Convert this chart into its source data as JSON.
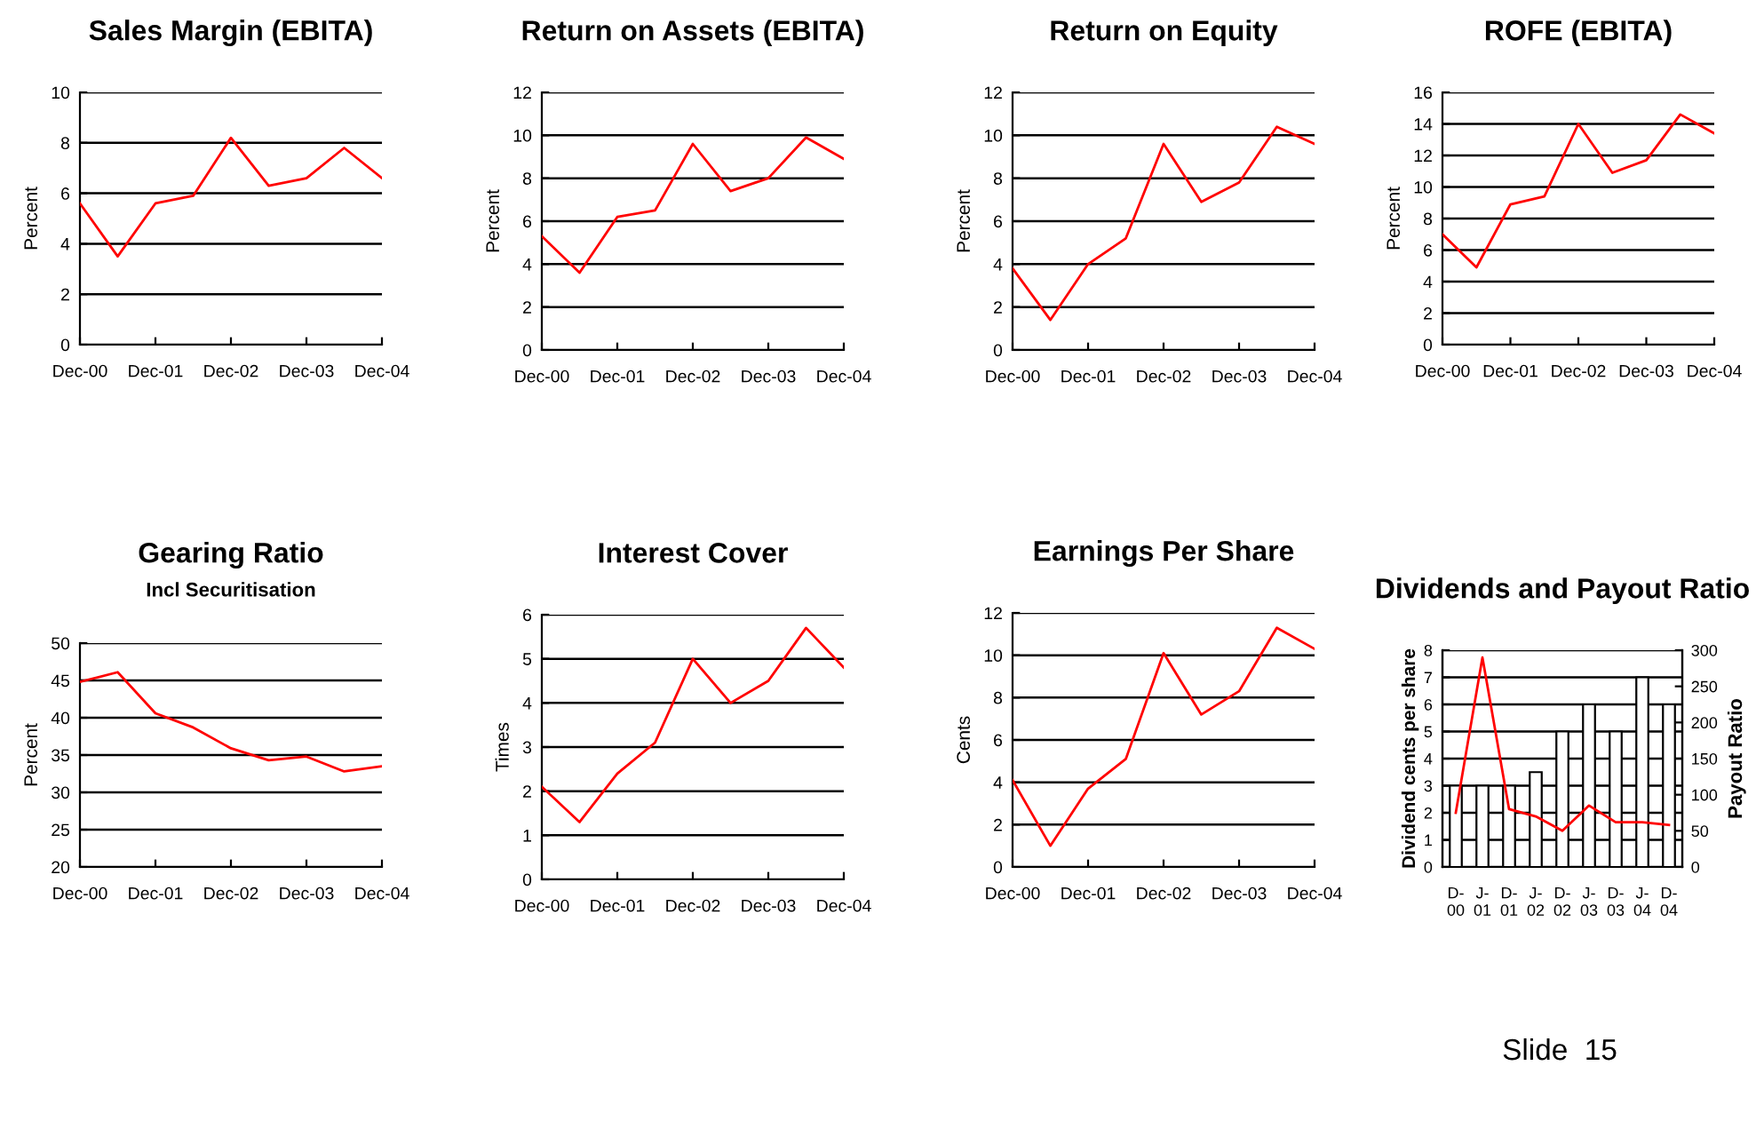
{
  "chart_data": [
    {
      "type": "line",
      "title": "Sales Margin (EBITA)",
      "ylabel": "Percent",
      "categories": [
        "Dec-00",
        null,
        "Dec-01",
        null,
        "Dec-02",
        null,
        "Dec-03",
        null,
        "Dec-04"
      ],
      "series": [
        {
          "color": "#ff0000",
          "values": [
            5.6,
            3.5,
            5.6,
            5.9,
            8.2,
            6.3,
            6.6,
            7.8,
            6.6
          ]
        }
      ],
      "ylim": [
        0,
        10
      ],
      "yticks": [
        0,
        2,
        4,
        6,
        8,
        10
      ],
      "grid": "y",
      "legend": false
    },
    {
      "type": "line",
      "title": "Return on Assets (EBITA)",
      "ylabel": "Percent",
      "categories": [
        "Dec-00",
        null,
        "Dec-01",
        null,
        "Dec-02",
        null,
        "Dec-03",
        null,
        "Dec-04"
      ],
      "series": [
        {
          "color": "#ff0000",
          "values": [
            5.3,
            3.6,
            6.2,
            6.5,
            9.6,
            7.4,
            8.0,
            9.9,
            8.9
          ]
        }
      ],
      "ylim": [
        0,
        12
      ],
      "yticks": [
        0,
        2,
        4,
        6,
        8,
        10,
        12
      ],
      "grid": "y",
      "legend": false
    },
    {
      "type": "line",
      "title": "Return on Equity",
      "ylabel": "Percent",
      "categories": [
        "Dec-00",
        null,
        "Dec-01",
        null,
        "Dec-02",
        null,
        "Dec-03",
        null,
        "Dec-04"
      ],
      "series": [
        {
          "color": "#ff0000",
          "values": [
            3.8,
            1.4,
            4.0,
            5.2,
            9.6,
            6.9,
            7.8,
            10.4,
            9.6
          ]
        }
      ],
      "ylim": [
        0,
        12
      ],
      "yticks": [
        0,
        2,
        4,
        6,
        8,
        10,
        12
      ],
      "grid": "y",
      "legend": false
    },
    {
      "type": "line",
      "title": "ROFE (EBITA)",
      "ylabel": "Percent",
      "categories": [
        "Dec-00",
        null,
        "Dec-01",
        null,
        "Dec-02",
        null,
        "Dec-03",
        null,
        "Dec-04"
      ],
      "series": [
        {
          "color": "#ff0000",
          "values": [
            7.0,
            4.9,
            8.9,
            9.4,
            14.0,
            10.9,
            11.7,
            14.6,
            13.4
          ]
        }
      ],
      "ylim": [
        0,
        16
      ],
      "yticks": [
        0,
        2,
        4,
        6,
        8,
        10,
        12,
        14,
        16
      ],
      "grid": "y",
      "legend": false
    },
    {
      "type": "line",
      "title": "Gearing Ratio",
      "subtitle": "Incl Securitisation",
      "ylabel": "Percent",
      "categories": [
        "Dec-00",
        null,
        "Dec-01",
        null,
        "Dec-02",
        null,
        "Dec-03",
        null,
        "Dec-04"
      ],
      "series": [
        {
          "color": "#ff0000",
          "values": [
            44.8,
            46.1,
            40.6,
            38.7,
            35.9,
            34.3,
            34.8,
            32.8,
            33.5
          ]
        }
      ],
      "ylim": [
        20,
        50
      ],
      "yticks": [
        20,
        25,
        30,
        35,
        40,
        45,
        50
      ],
      "grid": "y",
      "legend": false
    },
    {
      "type": "line",
      "title": "Interest Cover",
      "ylabel": "Times",
      "categories": [
        "Dec-00",
        null,
        "Dec-01",
        null,
        "Dec-02",
        null,
        "Dec-03",
        null,
        "Dec-04"
      ],
      "series": [
        {
          "color": "#ff0000",
          "values": [
            2.1,
            1.3,
            2.4,
            3.1,
            5.0,
            4.0,
            4.5,
            5.7,
            4.8
          ]
        }
      ],
      "ylim": [
        0,
        6
      ],
      "yticks": [
        0,
        1,
        2,
        3,
        4,
        5,
        6
      ],
      "grid": "y",
      "legend": false
    },
    {
      "type": "line",
      "title": "Earnings Per Share",
      "ylabel": "Cents",
      "categories": [
        "Dec-00",
        null,
        "Dec-01",
        null,
        "Dec-02",
        null,
        "Dec-03",
        null,
        "Dec-04"
      ],
      "series": [
        {
          "color": "#ff0000",
          "values": [
            4.1,
            1.0,
            3.7,
            5.1,
            10.1,
            7.2,
            8.3,
            11.3,
            10.3
          ]
        }
      ],
      "ylim": [
        0,
        12
      ],
      "yticks": [
        0,
        2,
        4,
        6,
        8,
        10,
        12
      ],
      "grid": "y",
      "legend": false
    },
    {
      "type": "bar",
      "title": "Dividends and Payout Ratio",
      "ylabel": "Dividend cents per share",
      "y2label": "Payout Ratio",
      "categories": [
        "D-\n00",
        "J-\n01",
        "D-\n01",
        "J-\n02",
        "D-\n02",
        "J-\n03",
        "D-\n03",
        "J-\n04",
        "D-\n04"
      ],
      "series": [
        {
          "type": "bar",
          "color": "#ffffff",
          "values": [
            3,
            3,
            3,
            3.5,
            5,
            6,
            5,
            7,
            6
          ]
        },
        {
          "type": "line",
          "axis": "y2",
          "color": "#ff0000",
          "values": [
            75,
            290,
            80,
            70,
            50,
            85,
            62,
            62,
            58
          ]
        }
      ],
      "ylim": [
        0,
        8
      ],
      "yticks": [
        0,
        1,
        2,
        3,
        4,
        5,
        6,
        7,
        8
      ],
      "y2lim": [
        0,
        300
      ],
      "y2ticks": [
        0,
        50,
        100,
        150,
        200,
        250,
        300
      ],
      "grid": "y",
      "legend": false,
      "annotations": [
        "Slide  15"
      ]
    }
  ]
}
